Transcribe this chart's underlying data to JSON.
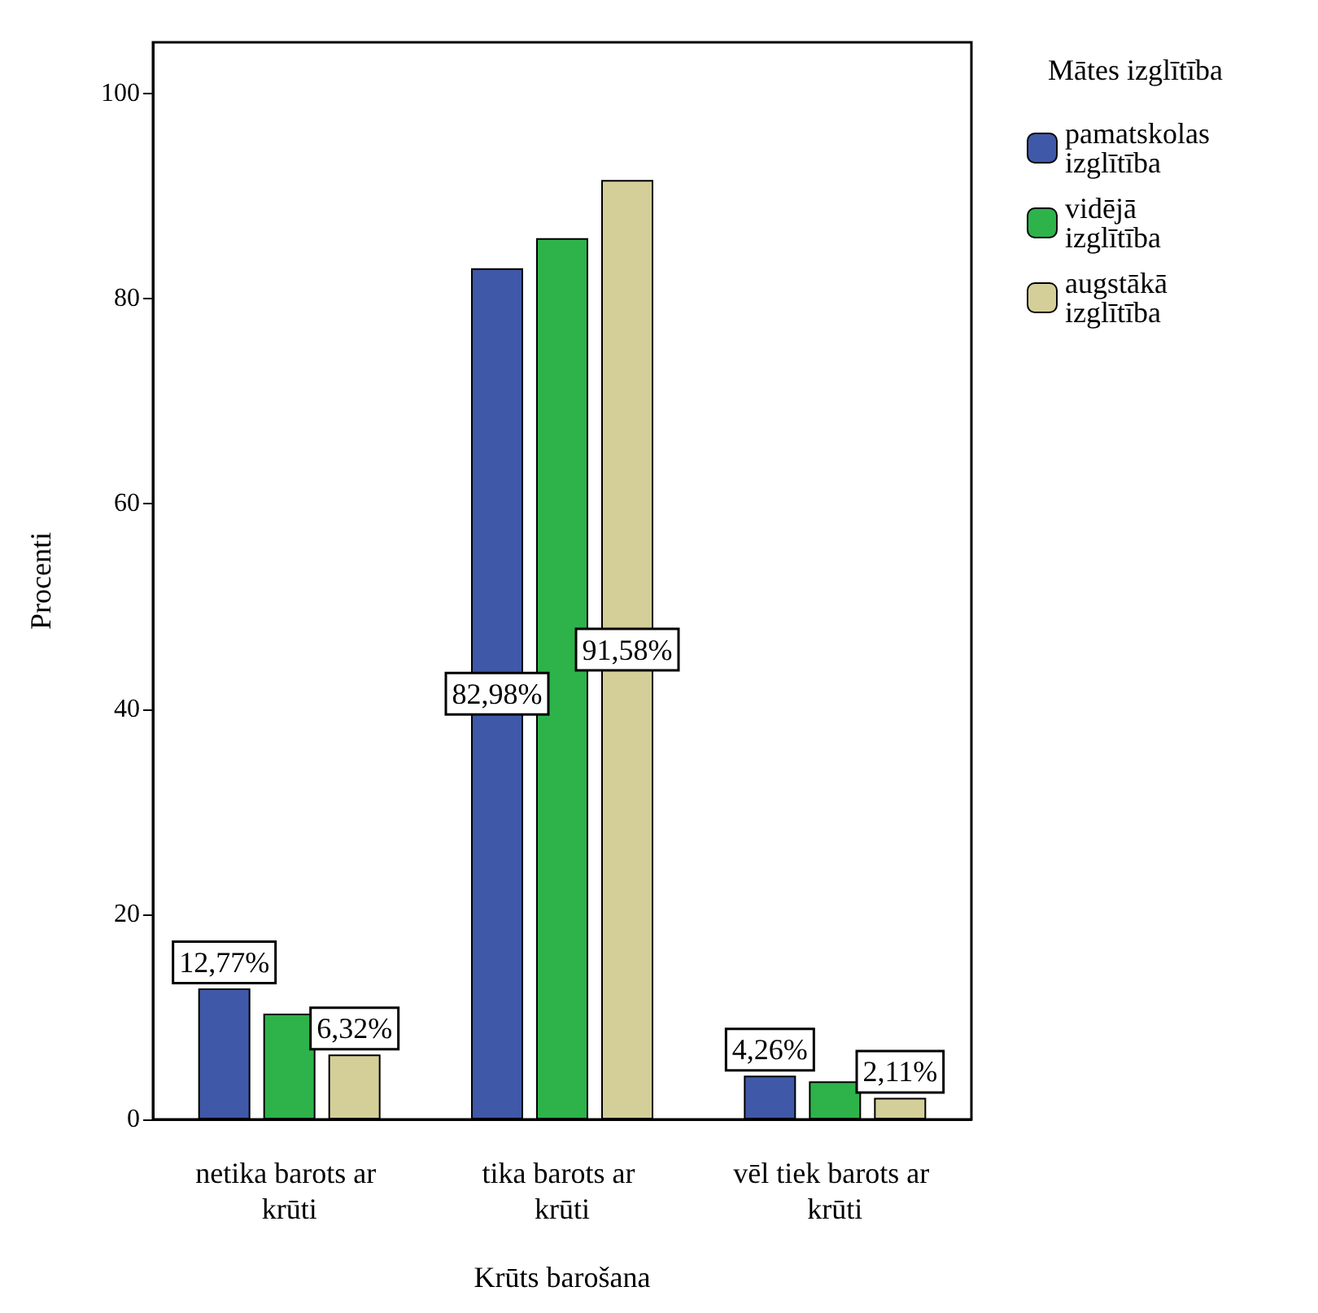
{
  "chart_data": {
    "type": "bar",
    "xlabel": "Krūts barošana",
    "ylabel": "Procenti",
    "legend_title": "Mātes izglītība",
    "legend": "top right",
    "grid": false,
    "categories": [
      "netika barots ar krūti",
      "tika barots ar krūti",
      "vēl tiek barots ar krūti"
    ],
    "ylim": [
      0,
      105
    ],
    "yticks": [
      0,
      20,
      40,
      60,
      80,
      100
    ],
    "series": [
      {
        "name": "pamatskolas izglītība",
        "color": "#3f58a8",
        "values": [
          12.77,
          82.98,
          4.26
        ],
        "value_labels": [
          "12,77%",
          "82,98%",
          "4,26%"
        ]
      },
      {
        "name": "vidējā izglītība",
        "color": "#2db34a",
        "values": [
          10.3,
          85.9,
          3.7
        ],
        "value_labels": [
          null,
          null,
          null
        ]
      },
      {
        "name": "augstākā izglītība",
        "color": "#d4cf98",
        "values": [
          6.32,
          91.58,
          2.11
        ],
        "value_labels": [
          "6,32%",
          "91,58%",
          "2,11%"
        ]
      }
    ]
  }
}
